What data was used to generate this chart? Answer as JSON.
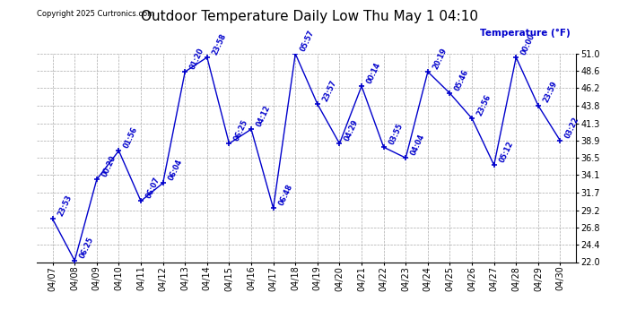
{
  "title": "Outdoor Temperature Daily Low Thu May 1 04:10",
  "copyright": "Copyright 2025 Curtronics.com",
  "legend_label": "Temperature (°F)",
  "x_labels": [
    "04/07",
    "04/08",
    "04/09",
    "04/10",
    "04/11",
    "04/12",
    "04/13",
    "04/14",
    "04/15",
    "04/16",
    "04/17",
    "04/18",
    "04/19",
    "04/20",
    "04/21",
    "04/22",
    "04/23",
    "04/24",
    "04/25",
    "04/26",
    "04/27",
    "04/28",
    "04/29",
    "04/30"
  ],
  "point_labels": [
    "23:53",
    "06:25",
    "00:20",
    "01:56",
    "06:07",
    "06:04",
    "01:20",
    "23:58",
    "06:25",
    "04:12",
    "06:48",
    "05:57",
    "23:57",
    "04:29",
    "00:14",
    "03:55",
    "04:04",
    "20:19",
    "05:46",
    "23:56",
    "05:12",
    "00:00",
    "23:59",
    "03:22"
  ],
  "y_values": [
    28.0,
    22.2,
    33.5,
    37.5,
    30.5,
    33.0,
    48.5,
    50.5,
    38.5,
    40.5,
    29.5,
    51.0,
    44.0,
    38.5,
    46.5,
    38.0,
    36.5,
    48.5,
    45.5,
    42.0,
    35.5,
    50.5,
    43.8,
    38.9
  ],
  "ylim_min": 22.0,
  "ylim_max": 51.0,
  "yticks": [
    22.0,
    24.4,
    26.8,
    29.2,
    31.7,
    34.1,
    36.5,
    38.9,
    41.3,
    43.8,
    46.2,
    48.6,
    51.0
  ],
  "line_color": "#0000cc",
  "bg_color": "#ffffff",
  "grid_color": "#aaaaaa",
  "title_fontsize": 11,
  "tick_fontsize": 7,
  "label_fontsize": 6.5
}
